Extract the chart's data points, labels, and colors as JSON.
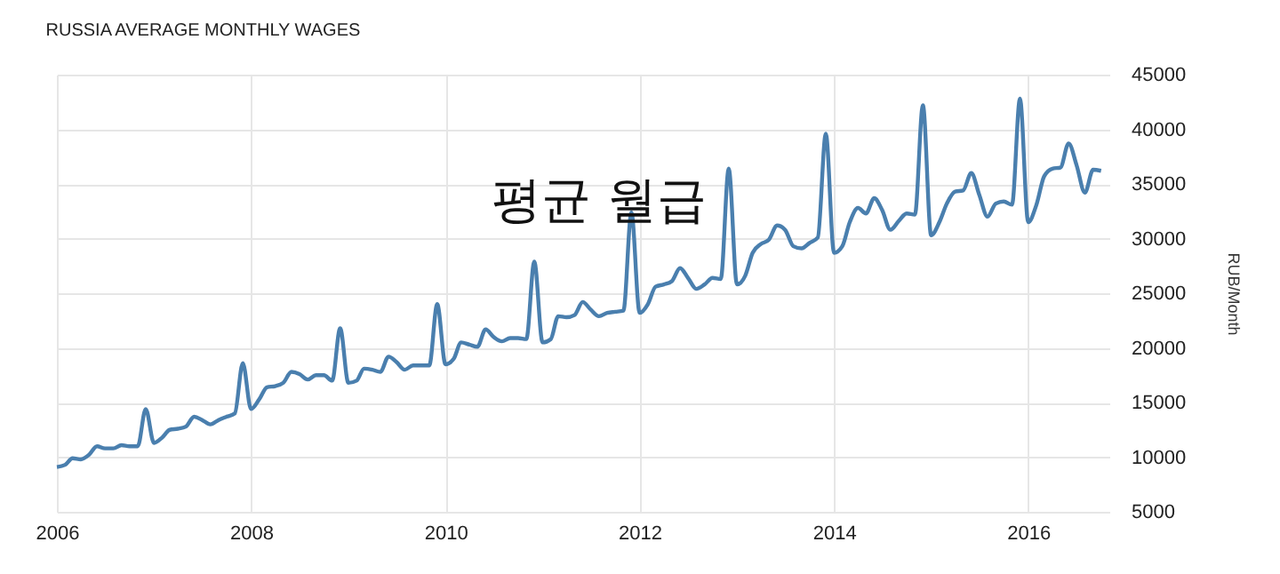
{
  "chart_data": {
    "type": "line",
    "title": "RUSSIA AVERAGE MONTHLY WAGES",
    "y2label": "RUB/Month",
    "annotations": [
      "평균 월급"
    ],
    "x": [
      "2006-01",
      "2006-02",
      "2006-03",
      "2006-04",
      "2006-05",
      "2006-06",
      "2006-07",
      "2006-08",
      "2006-09",
      "2006-10",
      "2006-11",
      "2006-12",
      "2007-01",
      "2007-02",
      "2007-03",
      "2007-04",
      "2007-05",
      "2007-06",
      "2007-07",
      "2007-08",
      "2007-09",
      "2007-10",
      "2007-11",
      "2007-12",
      "2008-01",
      "2008-02",
      "2008-03",
      "2008-04",
      "2008-05",
      "2008-06",
      "2008-07",
      "2008-08",
      "2008-09",
      "2008-10",
      "2008-11",
      "2008-12",
      "2009-01",
      "2009-02",
      "2009-03",
      "2009-04",
      "2009-05",
      "2009-06",
      "2009-07",
      "2009-08",
      "2009-09",
      "2009-10",
      "2009-11",
      "2009-12",
      "2010-01",
      "2010-02",
      "2010-03",
      "2010-04",
      "2010-05",
      "2010-06",
      "2010-07",
      "2010-08",
      "2010-09",
      "2010-10",
      "2010-11",
      "2010-12",
      "2011-01",
      "2011-02",
      "2011-03",
      "2011-04",
      "2011-05",
      "2011-06",
      "2011-07",
      "2011-08",
      "2011-09",
      "2011-10",
      "2011-11",
      "2011-12",
      "2012-01",
      "2012-02",
      "2012-03",
      "2012-04",
      "2012-05",
      "2012-06",
      "2012-07",
      "2012-08",
      "2012-09",
      "2012-10",
      "2012-11",
      "2012-12",
      "2013-01",
      "2013-02",
      "2013-03",
      "2013-04",
      "2013-05",
      "2013-06",
      "2013-07",
      "2013-08",
      "2013-09",
      "2013-10",
      "2013-11",
      "2013-12",
      "2014-01",
      "2014-02",
      "2014-03",
      "2014-04",
      "2014-05",
      "2014-06",
      "2014-07",
      "2014-08",
      "2014-09",
      "2014-10",
      "2014-11",
      "2014-12",
      "2015-01",
      "2015-02",
      "2015-03",
      "2015-04",
      "2015-05",
      "2015-06",
      "2015-07",
      "2015-08",
      "2015-09",
      "2015-10",
      "2015-11",
      "2015-12",
      "2016-01",
      "2016-02",
      "2016-03",
      "2016-04",
      "2016-05",
      "2016-06",
      "2016-07",
      "2016-08",
      "2016-09",
      "2016-10"
    ],
    "series": [
      {
        "color": "#4a7fae",
        "axis": "y2",
        "values": [
          9100,
          9300,
          9900,
          9800,
          10200,
          11000,
          10800,
          10800,
          11100,
          11000,
          11000,
          14400,
          11300,
          11800,
          12500,
          12600,
          12800,
          13700,
          13400,
          13000,
          13400,
          13700,
          14000,
          18600,
          14400,
          15300,
          16400,
          16500,
          16800,
          17800,
          17600,
          17100,
          17500,
          17500,
          17000,
          21800,
          16800,
          17000,
          18100,
          18000,
          17800,
          19200,
          18700,
          18000,
          18400,
          18400,
          18400,
          24000,
          18500,
          19000,
          20500,
          20300,
          20100,
          21700,
          21000,
          20600,
          20900,
          20900,
          20800,
          27900,
          20500,
          20800,
          22900,
          22800,
          23000,
          24200,
          23500,
          22900,
          23200,
          23300,
          23400,
          32400,
          23200,
          24000,
          25600,
          25800,
          26100,
          27300,
          26400,
          25400,
          25800,
          26400,
          26300,
          36400,
          25800,
          26600,
          28700,
          29500,
          29900,
          31200,
          30800,
          29300,
          29100,
          29600,
          30100,
          39600,
          28700,
          29300,
          31500,
          32800,
          32300,
          33700,
          32600,
          30800,
          31600,
          32300,
          32200,
          42200,
          30300,
          31500,
          33200,
          34300,
          34400,
          36000,
          34000,
          32000,
          33200,
          33400,
          33100,
          42800,
          31500,
          33100,
          35700,
          36400,
          36500,
          38700,
          36700,
          34200,
          36300,
          36200
        ]
      }
    ],
    "xlim": [
      "2006-01",
      "2016-11"
    ],
    "xticks": [
      "2006",
      "2008",
      "2010",
      "2012",
      "2014",
      "2016"
    ],
    "y2lim": [
      5000,
      45000
    ],
    "y2ticks": [
      5000,
      10000,
      15000,
      20000,
      25000,
      30000,
      35000,
      40000,
      45000
    ],
    "grid": true
  }
}
